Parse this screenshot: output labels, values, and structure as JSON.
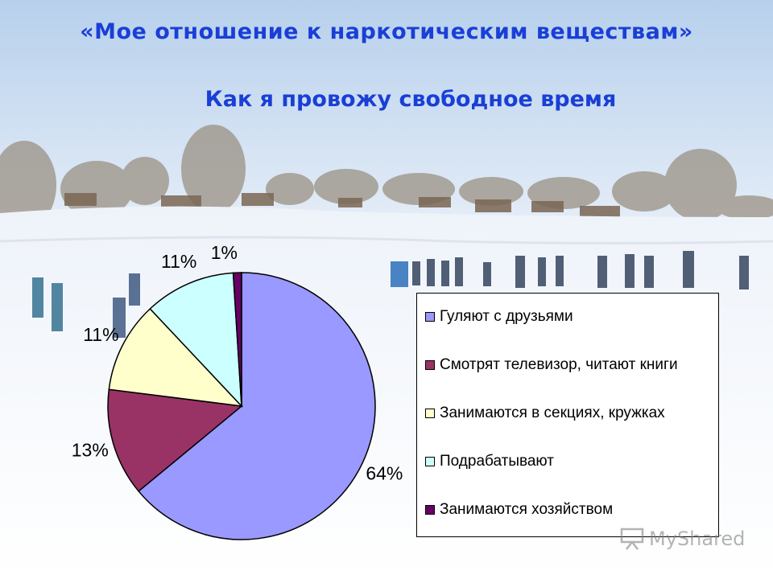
{
  "title": "«Мое отношение к наркотическим веществам»",
  "subtitle": "Как я провожу свободное время",
  "chart_data": {
    "type": "pie",
    "title": "Как я провожу свободное время",
    "start_angle_deg": 0,
    "direction": "clockwise",
    "legend_position": "right",
    "slices": [
      {
        "label": "Гуляют с друзьями",
        "value": 64,
        "value_label": "64%",
        "color": "#9999ff"
      },
      {
        "label": "Смотрят телевизор, читают книги",
        "value": 13,
        "value_label": "13%",
        "color": "#993366"
      },
      {
        "label": "Занимаются в секциях, кружках",
        "value": 11,
        "value_label": "11%",
        "color": "#ffffcc"
      },
      {
        "label": "Подрабатывают",
        "value": 11,
        "value_label": "11%",
        "color": "#ccffff"
      },
      {
        "label": "Занимаются хозяйством",
        "value": 1,
        "value_label": "1%",
        "color": "#660066"
      }
    ]
  },
  "watermark": "MyShared",
  "colors": {
    "title": "#1a3fd6",
    "sky_top": "#b9d2ee",
    "sky_bottom": "#dde9f6",
    "snow": "#f4f7fb"
  }
}
